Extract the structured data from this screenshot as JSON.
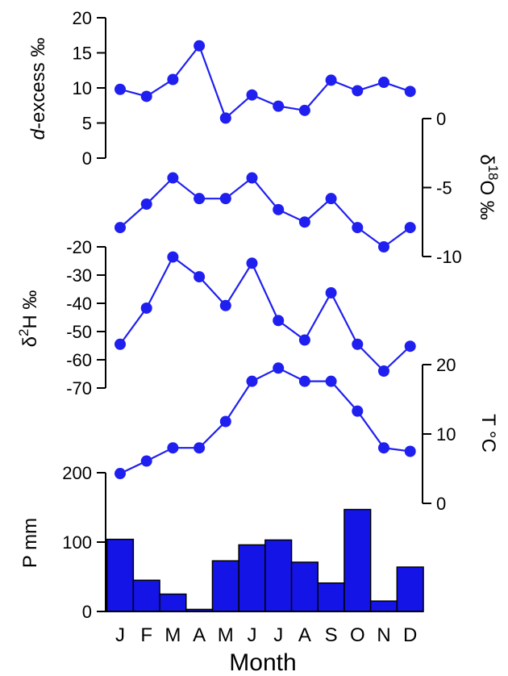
{
  "colors": {
    "series": "#1f1ff0",
    "bar_fill": "#1414e6",
    "axis": "#000000"
  },
  "chart_data": [
    {
      "type": "line",
      "title": "",
      "ylabel": "d-excess ‰",
      "ylabel_italic_prefix": "d",
      "ylabel_rest": "-excess ‰",
      "ylim": [
        0,
        20
      ],
      "yticks": [
        0,
        5,
        10,
        15,
        20
      ],
      "y_axis_side": "left",
      "categories": [
        "J",
        "F",
        "M",
        "A",
        "M",
        "J",
        "J",
        "A",
        "S",
        "O",
        "N",
        "D"
      ],
      "values": [
        9.8,
        8.8,
        11.2,
        16.0,
        5.7,
        9.0,
        7.4,
        6.8,
        11.1,
        9.6,
        10.8,
        9.5
      ]
    },
    {
      "type": "line",
      "title": "",
      "ylabel": "δ18O ‰",
      "ylabel_base": "δ",
      "ylabel_sup": "18",
      "ylabel_rest": "O ‰",
      "ylim": [
        -10,
        0
      ],
      "yticks": [
        0,
        -5,
        -10
      ],
      "y_axis_side": "right",
      "categories": [
        "J",
        "F",
        "M",
        "A",
        "M",
        "J",
        "J",
        "A",
        "S",
        "O",
        "N",
        "D"
      ],
      "values": [
        -7.9,
        -6.2,
        -4.3,
        -5.8,
        -5.8,
        -4.3,
        -6.6,
        -7.5,
        -5.8,
        -7.9,
        -9.3,
        -7.9
      ]
    },
    {
      "type": "line",
      "title": "",
      "ylabel": "δ2H ‰",
      "ylabel_base": "δ",
      "ylabel_sup": "2",
      "ylabel_rest": "H ‰",
      "ylim": [
        -70,
        -20
      ],
      "yticks": [
        -20,
        -30,
        -40,
        -50,
        -60,
        -70
      ],
      "y_axis_side": "left",
      "categories": [
        "J",
        "F",
        "M",
        "A",
        "M",
        "J",
        "J",
        "A",
        "S",
        "O",
        "N",
        "D"
      ],
      "values": [
        -54.5,
        -41.7,
        -23.6,
        -30.6,
        -40.8,
        -25.8,
        -46.1,
        -53.0,
        -36.3,
        -54.5,
        -64.0,
        -55.2
      ]
    },
    {
      "type": "line",
      "title": "",
      "ylabel": "T °C",
      "ylim": [
        0,
        20
      ],
      "yticks": [
        0,
        10,
        20
      ],
      "y_axis_side": "right",
      "categories": [
        "J",
        "F",
        "M",
        "A",
        "M",
        "J",
        "J",
        "A",
        "S",
        "O",
        "N",
        "D"
      ],
      "values": [
        4.3,
        6.1,
        8.0,
        8.0,
        11.8,
        17.6,
        19.5,
        17.6,
        17.6,
        13.3,
        8.0,
        7.5
      ]
    },
    {
      "type": "bar",
      "title": "",
      "ylabel": "P mm",
      "xlabel": "Month",
      "ylim": [
        0,
        200
      ],
      "yticks": [
        0,
        100,
        200
      ],
      "y_axis_side": "left",
      "categories": [
        "J",
        "F",
        "M",
        "A",
        "M",
        "J",
        "J",
        "A",
        "S",
        "O",
        "N",
        "D"
      ],
      "values": [
        104,
        45,
        25,
        3,
        73,
        96,
        103,
        71,
        41,
        147,
        15,
        64
      ]
    }
  ]
}
